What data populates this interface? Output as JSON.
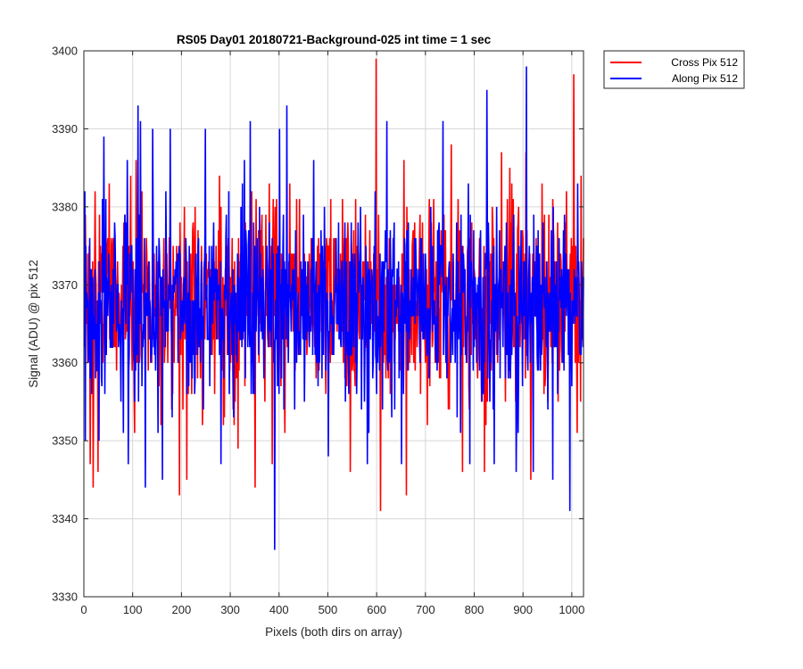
{
  "chart_data": {
    "type": "line",
    "title": "RS05 Day01 20180721-Background-025 int time = 1 sec",
    "xlabel": "Pixels (both dirs on array)",
    "ylabel": "Signal (ADU) @ pix 512",
    "xlim": [
      0,
      1024
    ],
    "ylim": [
      3330,
      3400
    ],
    "xticks": [
      0,
      100,
      200,
      300,
      400,
      500,
      600,
      700,
      800,
      900,
      1000
    ],
    "yticks": [
      3330,
      3340,
      3350,
      3360,
      3370,
      3380,
      3390,
      3400
    ],
    "grid": true,
    "legend_position": "outside-top-right",
    "series": [
      {
        "name": "Cross Pix 512",
        "color": "#ff0000",
        "mean": 3368,
        "std": 6,
        "count": 1024,
        "highlights": [
          {
            "x": 12,
            "y": 3347
          },
          {
            "x": 18,
            "y": 3344
          },
          {
            "x": 22,
            "y": 3382
          },
          {
            "x": 28,
            "y": 3346
          },
          {
            "x": 95,
            "y": 3384
          },
          {
            "x": 106,
            "y": 3386
          },
          {
            "x": 195,
            "y": 3343
          },
          {
            "x": 210,
            "y": 3345
          },
          {
            "x": 350,
            "y": 3344
          },
          {
            "x": 385,
            "y": 3347
          },
          {
            "x": 545,
            "y": 3346
          },
          {
            "x": 598,
            "y": 3399
          },
          {
            "x": 607,
            "y": 3341
          },
          {
            "x": 655,
            "y": 3386
          },
          {
            "x": 660,
            "y": 3343
          },
          {
            "x": 752,
            "y": 3388
          },
          {
            "x": 775,
            "y": 3346
          },
          {
            "x": 820,
            "y": 3346
          },
          {
            "x": 855,
            "y": 3387
          },
          {
            "x": 872,
            "y": 3385
          },
          {
            "x": 905,
            "y": 3387
          },
          {
            "x": 915,
            "y": 3345
          },
          {
            "x": 938,
            "y": 3383
          },
          {
            "x": 1003,
            "y": 3397
          },
          {
            "x": 1010,
            "y": 3351
          },
          {
            "x": 1018,
            "y": 3384
          }
        ]
      },
      {
        "name": "Along Pix 512",
        "color": "#0000ff",
        "mean": 3367,
        "std": 6,
        "count": 1024,
        "highlights": [
          {
            "x": 2,
            "y": 3350
          },
          {
            "x": 40,
            "y": 3389
          },
          {
            "x": 80,
            "y": 3351
          },
          {
            "x": 88,
            "y": 3386
          },
          {
            "x": 110,
            "y": 3393
          },
          {
            "x": 115,
            "y": 3391
          },
          {
            "x": 125,
            "y": 3344
          },
          {
            "x": 140,
            "y": 3390
          },
          {
            "x": 160,
            "y": 3345
          },
          {
            "x": 176,
            "y": 3390
          },
          {
            "x": 248,
            "y": 3390
          },
          {
            "x": 280,
            "y": 3347
          },
          {
            "x": 328,
            "y": 3386
          },
          {
            "x": 340,
            "y": 3391
          },
          {
            "x": 390,
            "y": 3336
          },
          {
            "x": 400,
            "y": 3390
          },
          {
            "x": 415,
            "y": 3393
          },
          {
            "x": 470,
            "y": 3386
          },
          {
            "x": 500,
            "y": 3348
          },
          {
            "x": 580,
            "y": 3347
          },
          {
            "x": 620,
            "y": 3391
          },
          {
            "x": 630,
            "y": 3353
          },
          {
            "x": 650,
            "y": 3347
          },
          {
            "x": 735,
            "y": 3391
          },
          {
            "x": 790,
            "y": 3347
          },
          {
            "x": 825,
            "y": 3395
          },
          {
            "x": 840,
            "y": 3347
          },
          {
            "x": 885,
            "y": 3346
          },
          {
            "x": 906,
            "y": 3398
          },
          {
            "x": 920,
            "y": 3346
          },
          {
            "x": 960,
            "y": 3345
          },
          {
            "x": 995,
            "y": 3341
          }
        ]
      }
    ]
  }
}
